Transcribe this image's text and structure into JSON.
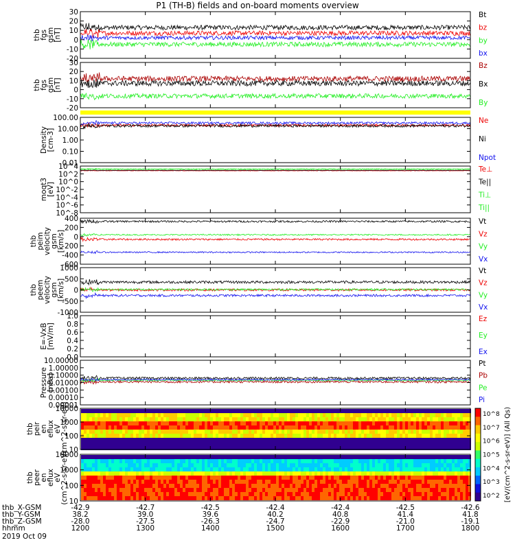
{
  "title": "P1  (TH-B) fields and on-board moments overview",
  "footer": {
    "rows": [
      {
        "label": "thb_X-GSM",
        "values": [
          "-42.9",
          "-42.7",
          "-42.5",
          "-42.4",
          "-42.4",
          "-42.5",
          "-42.6"
        ]
      },
      {
        "label": "thb_Y-GSM",
        "values": [
          "38.2",
          "39.0",
          "39.6",
          "40.2",
          "40.8",
          "41.4",
          "41.8"
        ]
      },
      {
        "label": "thb_Z-GSM",
        "values": [
          "-28.0",
          "-27.5",
          "-26.3",
          "-24.7",
          "-22.9",
          "-21.0",
          "-19.1"
        ]
      },
      {
        "label": "hhmm",
        "values": [
          "1200",
          "1300",
          "1400",
          "1500",
          "1600",
          "1700",
          "1800"
        ]
      }
    ],
    "date": "2019 Oct 09"
  },
  "colors": {
    "black": "#000000",
    "red": "#ee0000",
    "green": "#22ee22",
    "blue": "#1111ee",
    "darkred": "#aa0000",
    "yellow": "#ffff00"
  },
  "colorbar": {
    "label": "[eV/(cm^2-s-sr-eV)] (All Qs)",
    "ticks": [
      "10^8",
      "10^7",
      "10^6",
      "10^5",
      "10^4",
      "10^3",
      "10^2"
    ],
    "colors": [
      "#ff0000",
      "#ff6600",
      "#ffcc00",
      "#ffff00",
      "#ccff00",
      "#33ff66",
      "#00ffcc",
      "#00ccff",
      "#0066ff",
      "#1010dd",
      "#300090"
    ]
  },
  "chart_data": [
    {
      "type": "line",
      "ylabel": "thb fgs gsm [nT]",
      "yticks": [
        "30",
        "20",
        "10",
        "0",
        "-10",
        "-20"
      ],
      "ylim": [
        -20,
        30
      ],
      "series": [
        {
          "name": "Bt",
          "color": "black",
          "base": 13,
          "noise": 2.5
        },
        {
          "name": "bz",
          "color": "red",
          "base": 7,
          "noise": 2.5
        },
        {
          "name": "by",
          "color": "green",
          "base": -5,
          "noise": 2.5
        },
        {
          "name": "bx",
          "color": "blue",
          "base": 2,
          "noise": 2
        }
      ]
    },
    {
      "type": "line",
      "ylabel": "thb fgs gsm [nT]",
      "yticks": [
        "30",
        "20",
        "10",
        "0",
        "-10",
        "-20"
      ],
      "ylim": [
        -20,
        30
      ],
      "series": [
        {
          "name": "Bz",
          "color": "darkred",
          "base": 12,
          "noise": 3
        },
        {
          "name": "Bx",
          "color": "black",
          "base": 7,
          "noise": 3
        },
        {
          "name": "By",
          "color": "green",
          "base": -7,
          "noise": 2.5
        }
      ]
    },
    {
      "type": "line",
      "ylabel": "Density [cm-3]",
      "yticks": [
        "100.00",
        "10.00",
        "1.00",
        "0.10",
        "0.01"
      ],
      "yscale": "log",
      "series": [
        {
          "name": "Ne",
          "color": "red",
          "base": 1.3,
          "noise": 0.1
        },
        {
          "name": "Ni",
          "color": "black",
          "base": 1.25,
          "noise": 0.12
        },
        {
          "name": "Npot",
          "color": "blue",
          "base": 1.5,
          "noise": 0.1
        }
      ]
    },
    {
      "type": "line",
      "ylabel": "moqt3 [eV]",
      "yticks": [
        "10^4",
        "10^2",
        "10^0",
        "10^-2",
        "10^-4",
        "10^-6",
        "10^-8"
      ],
      "yscale": "log",
      "series": [
        {
          "name": "Te⊥",
          "color": "red",
          "base": 2.8,
          "noise": 0.05
        },
        {
          "name": "Te||",
          "color": "black",
          "base": 2.9,
          "noise": 0.05
        },
        {
          "name": "Ti⊥",
          "color": "green",
          "base": 3.2,
          "noise": 0.05
        },
        {
          "name": "Ti||",
          "color": "green",
          "base": 3.25,
          "noise": 0.05
        }
      ]
    },
    {
      "type": "line",
      "ylabel": "thb peim velocity gsm [km/s]",
      "yticks": [
        "400",
        "200",
        "0",
        "-200",
        "-400",
        "-600"
      ],
      "ylim": [
        -600,
        400
      ],
      "series": [
        {
          "name": "Vt",
          "color": "black",
          "base": 330,
          "noise": 20
        },
        {
          "name": "Vz",
          "color": "red",
          "base": -60,
          "noise": 20
        },
        {
          "name": "Vy",
          "color": "green",
          "base": 40,
          "noise": 15
        },
        {
          "name": "Vx",
          "color": "blue",
          "base": -340,
          "noise": 15
        }
      ]
    },
    {
      "type": "line",
      "ylabel": "thb peem velocity gsm [km/s]",
      "yticks": [
        "1000",
        "500",
        "0",
        "-500",
        "-1000"
      ],
      "ylim": [
        -1000,
        1000
      ],
      "series": [
        {
          "name": "Vt",
          "color": "black",
          "base": 350,
          "noise": 60
        },
        {
          "name": "Vz",
          "color": "red",
          "base": 0,
          "noise": 50
        },
        {
          "name": "Vy",
          "color": "green",
          "base": 20,
          "noise": 40
        },
        {
          "name": "Vx",
          "color": "blue",
          "base": -250,
          "noise": 50
        }
      ]
    },
    {
      "type": "line",
      "ylabel": "E=-VxB [mV/m]",
      "yticks": [
        "1.0",
        "0.8",
        "0.6",
        "0.4",
        "0.2",
        "0.0"
      ],
      "ylim": [
        0,
        1
      ],
      "series": [
        {
          "name": "Ez",
          "color": "red"
        },
        {
          "name": "Ey",
          "color": "green"
        },
        {
          "name": "Ex",
          "color": "blue"
        }
      ]
    },
    {
      "type": "line",
      "ylabel": "Pressure [nPa]",
      "yticks": [
        "10.00000",
        "1.00000",
        "0.10000",
        "0.01000",
        "0.00100",
        "0.00010",
        "0.00001"
      ],
      "yscale": "log",
      "series": [
        {
          "name": "Pt",
          "color": "black",
          "base": -1.4,
          "noise": 0.15
        },
        {
          "name": "Pb",
          "color": "darkred",
          "base": -1.9,
          "noise": 0.15
        },
        {
          "name": "Pe",
          "color": "green",
          "base": -1.7,
          "noise": 0.1
        },
        {
          "name": "Pi",
          "color": "blue",
          "base": -1.6,
          "noise": 0.1
        }
      ]
    },
    {
      "type": "heatmap",
      "ylabel": "thb peir en eflux eV (cm^2-s-sr-eV)",
      "yticks": [
        "10000",
        "1000",
        "100",
        "10"
      ],
      "yscale": "log"
    },
    {
      "type": "heatmap",
      "ylabel": "thb peer en eflux eV (cm^2-s-sr-eV)",
      "yticks": [
        "10000",
        "1000",
        "100",
        "10"
      ],
      "yscale": "log"
    }
  ]
}
